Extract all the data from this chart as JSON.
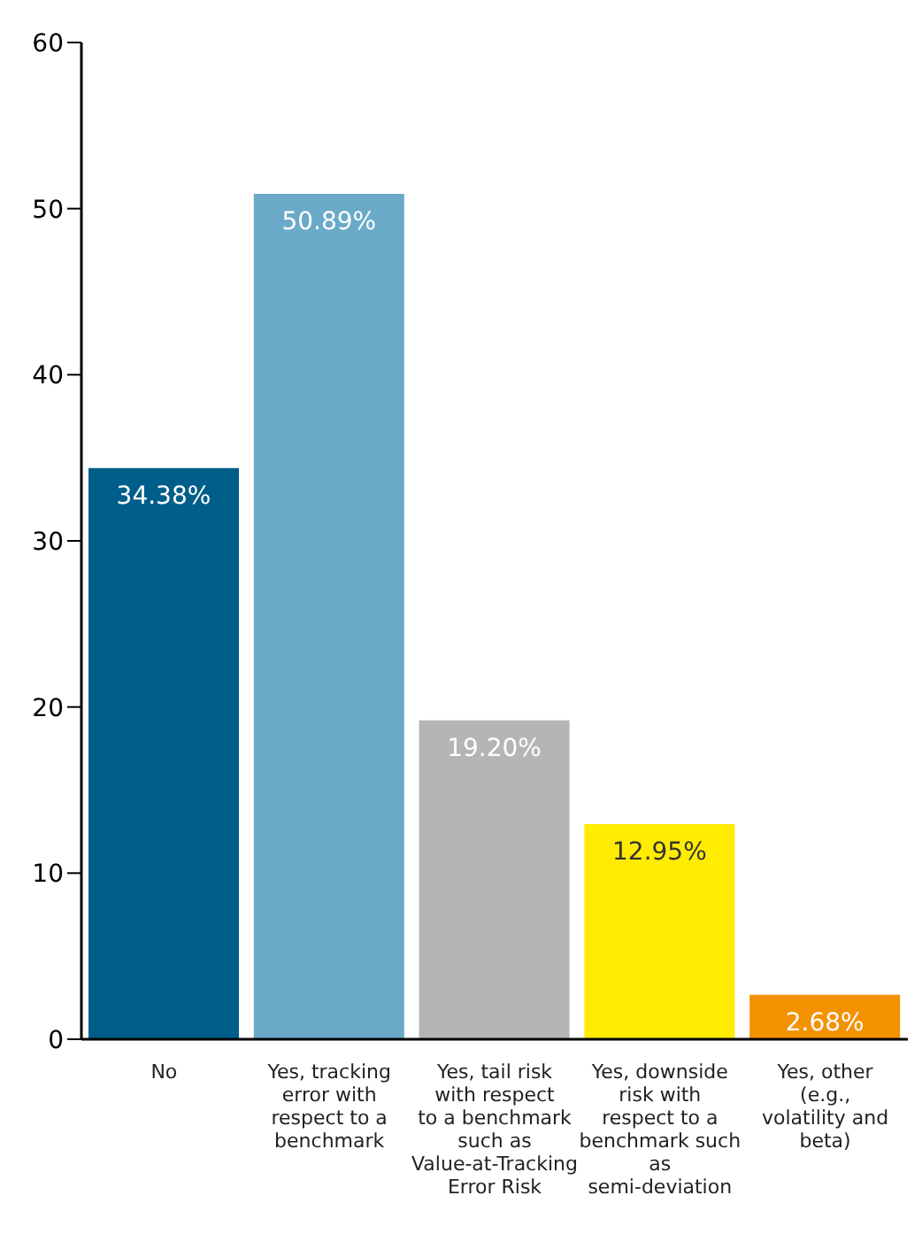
{
  "chart_data": {
    "type": "bar",
    "categories": [
      "No",
      "Yes, tracking error with respect to a benchmark",
      "Yes, tail risk with respect to a benchmark such as Value-at-Tracking Error Risk",
      "Yes, downside risk with respect to a benchmark such as semi-deviation",
      "Yes, other (e.g., volatility and beta)"
    ],
    "values": [
      34.38,
      50.89,
      19.2,
      12.95,
      2.68
    ],
    "colors": [
      "#005e8a",
      "#6aaac8",
      "#b4b5b7",
      "#ffec00",
      "#f39200"
    ],
    "value_labels": [
      "34.38%",
      "50.89%",
      "19.20%",
      "12.95%",
      "2.68%"
    ],
    "ylim": [
      0,
      60
    ],
    "yticks": [
      0,
      10,
      20,
      30,
      40,
      50,
      60
    ],
    "grid": false
  }
}
